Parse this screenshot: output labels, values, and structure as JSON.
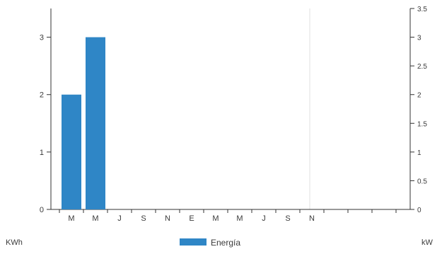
{
  "chart_data": {
    "type": "bar",
    "categories": [
      "M",
      "M",
      "J",
      "S",
      "N",
      "E",
      "M",
      "M",
      "J",
      "S",
      "N"
    ],
    "series": [
      {
        "name": "Energía",
        "values": [
          2,
          3,
          null,
          null,
          null,
          null,
          null,
          null,
          null,
          null,
          null
        ]
      }
    ],
    "left_axis": {
      "label": "KWh",
      "ylim": [
        0,
        3.5
      ],
      "ticks": [
        0,
        1,
        2,
        3
      ]
    },
    "right_axis": {
      "label": "kW",
      "ylim": [
        0,
        3.5
      ],
      "ticks": [
        "0",
        "0.5",
        "1",
        "1.5",
        "2",
        "2.5",
        "3",
        "3.5"
      ]
    },
    "legend": {
      "label": "Energía",
      "placement": "bottom-center"
    },
    "grid": false,
    "colors": {
      "bar": "#2f86c6",
      "axis": "#333333",
      "guide": "#e2e2e2"
    }
  }
}
